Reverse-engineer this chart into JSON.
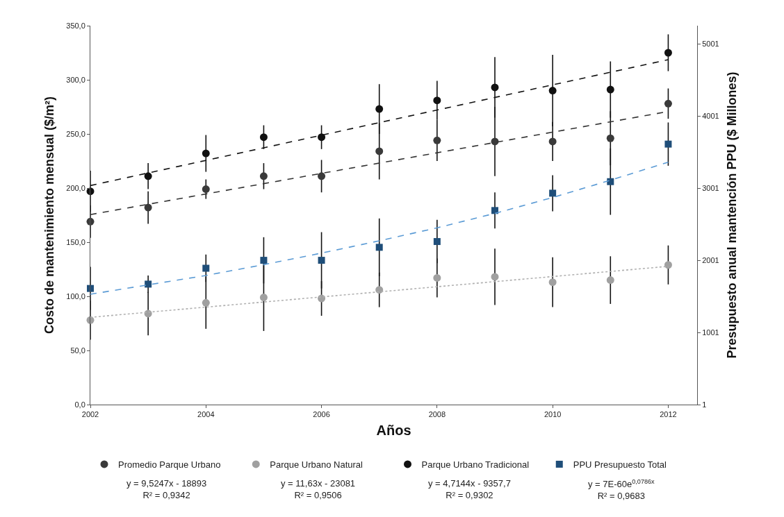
{
  "chart_data": {
    "type": "scatter",
    "xlabel": "Años",
    "ylabel": "Costo de mantenimiento mensual ($/m²)",
    "y2label": "Presupuesto anual mantención PPU ($ Millones)",
    "x": [
      2002,
      2003,
      2004,
      2005,
      2006,
      2007,
      2008,
      2009,
      2010,
      2011,
      2012
    ],
    "xlim": [
      2002,
      2012.5
    ],
    "xticks": [
      2002,
      2004,
      2006,
      2008,
      2010,
      2012
    ],
    "ylim": [
      0,
      350
    ],
    "yticks": [
      {
        "value": 0,
        "label": "0,0"
      },
      {
        "value": 50,
        "label": "50,0"
      },
      {
        "value": 100,
        "label": "100,0"
      },
      {
        "value": 150,
        "label": "150,0"
      },
      {
        "value": 200,
        "label": "200,0"
      },
      {
        "value": 250,
        "label": "250,0"
      },
      {
        "value": 300,
        "label": "300,0"
      },
      {
        "value": 350,
        "label": "350,0"
      }
    ],
    "y2lim": [
      1,
      5251
    ],
    "y2ticks": [
      1,
      1001,
      2001,
      3001,
      4001,
      5001
    ],
    "grid": false,
    "legend": "bottom",
    "series": [
      {
        "name": "Promedio Parque Urbano",
        "marker": "circle",
        "color": "#3a3a3a",
        "values": [
          169,
          182,
          199,
          211,
          211,
          234,
          244,
          243,
          243,
          246,
          278
        ],
        "errors": [
          15,
          15,
          9,
          12,
          15,
          26,
          19,
          32,
          18,
          25,
          14
        ]
      },
      {
        "name": "Parque Urbano Natural",
        "marker": "circle",
        "color": "#a0a0a0",
        "values": [
          78,
          84,
          94,
          99,
          98,
          106,
          117,
          118,
          113,
          115,
          129
        ],
        "errors": [
          18,
          20,
          24,
          31,
          16,
          16,
          18,
          26,
          23,
          22,
          18
        ]
      },
      {
        "name": "Parque Urbano Tradicional",
        "marker": "circle",
        "color": "#111111",
        "values": [
          197,
          211,
          232,
          247,
          247,
          273,
          281,
          293,
          290,
          291,
          325
        ],
        "errors": [
          19,
          12,
          17,
          11,
          11,
          23,
          18,
          28,
          33,
          26,
          17
        ]
      },
      {
        "name": "PPU Presupuesto Total",
        "marker": "square",
        "color": "#1f4e79",
        "axis": "y2",
        "values": [
          1610,
          1670,
          1890,
          2000,
          2000,
          2180,
          2260,
          2690,
          2930,
          3090,
          3610
        ],
        "errors": [
          300,
          120,
          190,
          320,
          390,
          400,
          300,
          250,
          250,
          460,
          300
        ]
      },
      {
        "type": "line",
        "marker": "none",
        "line_style": "dashed",
        "color": "#333333",
        "x": [
          2002,
          2012
        ],
        "values": [
          175.5,
          270.7
        ]
      },
      {
        "type": "line",
        "marker": "none",
        "line_style": "dotted",
        "color": "#b0b0b0",
        "x": [
          2002,
          2012
        ],
        "values": [
          80.6,
          127.7
        ]
      },
      {
        "type": "line",
        "marker": "none",
        "line_style": "dashed",
        "color": "#111111",
        "x": [
          2002,
          2012
        ],
        "values": [
          202.3,
          318.6
        ]
      },
      {
        "type": "line",
        "marker": "none",
        "line_style": "dashed",
        "color": "#5b9bd5",
        "axis": "y2",
        "x": [
          2002,
          2003,
          2004,
          2005,
          2006,
          2007,
          2008,
          2009,
          2010,
          2011,
          2012
        ],
        "values": [
          1530,
          1660,
          1790,
          1940,
          2100,
          2270,
          2450,
          2650,
          2870,
          3110,
          3360
        ]
      }
    ],
    "annotations": [
      "y = 9,5247x - 18893\nR² = 0,9342",
      "y = 11,63x - 23081\nR² = 0,9506",
      "y = 4,7144x - 9357,7\nR² = 0,9302",
      "y = 7E-60e$^{0,0786x}$\nR² = 0,9683"
    ]
  }
}
